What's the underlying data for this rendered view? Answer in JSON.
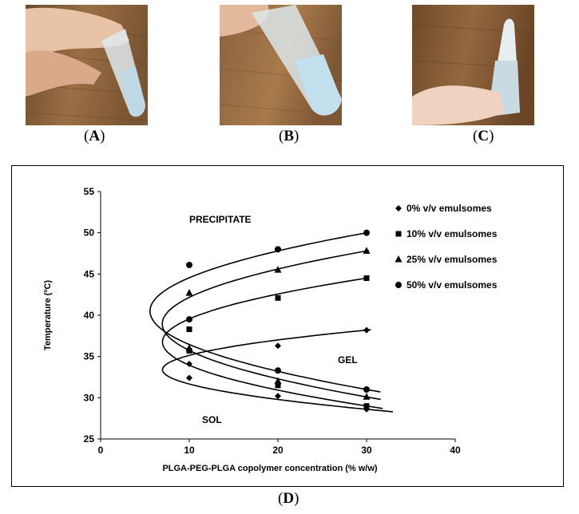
{
  "panels": [
    {
      "letter": "A"
    },
    {
      "letter": "B"
    },
    {
      "letter": "C"
    }
  ],
  "panel_d_letter": "D",
  "chart_data": {
    "type": "scatter",
    "xlabel": "PLGA-PEG-PLGA copolymer concentration (% w/w)",
    "ylabel": "Temperature (ºC)",
    "xlim": [
      0,
      40
    ],
    "ylim": [
      25,
      55
    ],
    "xticks": [
      "0",
      "10",
      "20",
      "30",
      "40"
    ],
    "yticks": [
      "25",
      "30",
      "35",
      "40",
      "45",
      "50",
      "55"
    ],
    "grid": false,
    "legend_position": "top-right",
    "annotations": [
      "PRECIPITATE",
      "GEL",
      "SOL"
    ],
    "series": [
      {
        "name": "0% v/v emulsomes",
        "marker": "diamond",
        "x": [
          10,
          20,
          30,
          10,
          20,
          30
        ],
        "y": [
          32.4,
          30.2,
          28.6,
          34.1,
          36.3,
          38.2
        ]
      },
      {
        "name": "10% v/v emulsomes",
        "marker": "square",
        "x": [
          10,
          20,
          30,
          10,
          20,
          30
        ],
        "y": [
          35.7,
          31.5,
          29.0,
          38.3,
          42.1,
          44.5
        ]
      },
      {
        "name": "25% v/v emulsomes",
        "marker": "triangle",
        "x": [
          10,
          20,
          30,
          10,
          20,
          30
        ],
        "y": [
          36.0,
          32.0,
          30.1,
          42.7,
          45.5,
          47.8
        ]
      },
      {
        "name": "50% v/v emulsomes",
        "marker": "circle",
        "x": [
          10,
          20,
          30,
          10,
          20,
          30
        ],
        "y": [
          39.5,
          33.3,
          31.0,
          46.1,
          48.0,
          50.0
        ]
      }
    ]
  }
}
